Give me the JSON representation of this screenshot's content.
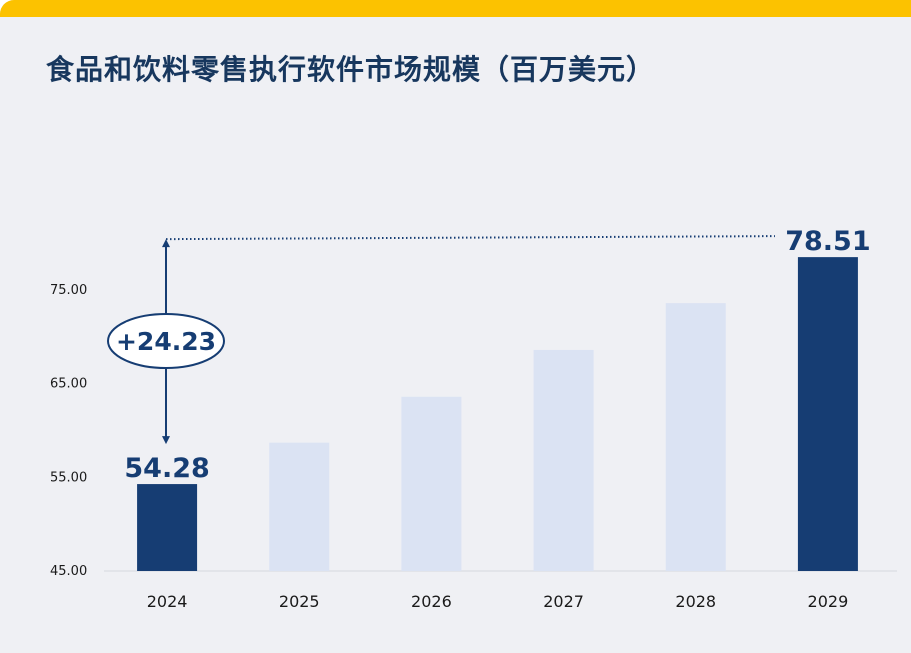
{
  "colors": {
    "accent_bar": "#fcc200",
    "highlight": "#163d73",
    "muted": "#dbe3f3",
    "title": "#17375e",
    "annotation": "#163d73"
  },
  "chart_data": {
    "type": "bar",
    "title": "食品和饮料零售执行软件市场规模（百万美元）",
    "categories": [
      "2024",
      "2025",
      "2026",
      "2027",
      "2028",
      "2029"
    ],
    "values": [
      54.28,
      58.7,
      63.6,
      68.6,
      73.6,
      78.51
    ],
    "highlighted": [
      true,
      false,
      false,
      false,
      false,
      true
    ],
    "data_labels": [
      "54.28",
      "",
      "",
      "",
      "",
      "78.51"
    ],
    "yticks": [
      "45.00",
      "55.00",
      "65.00",
      "75.00"
    ],
    "ytick_values": [
      45,
      55,
      65,
      75
    ],
    "ylim": [
      45,
      80
    ],
    "xlabel": "",
    "ylabel": "",
    "grid": false,
    "annotation": {
      "label": "+24.23",
      "from": 54.28,
      "to": 78.51
    }
  }
}
